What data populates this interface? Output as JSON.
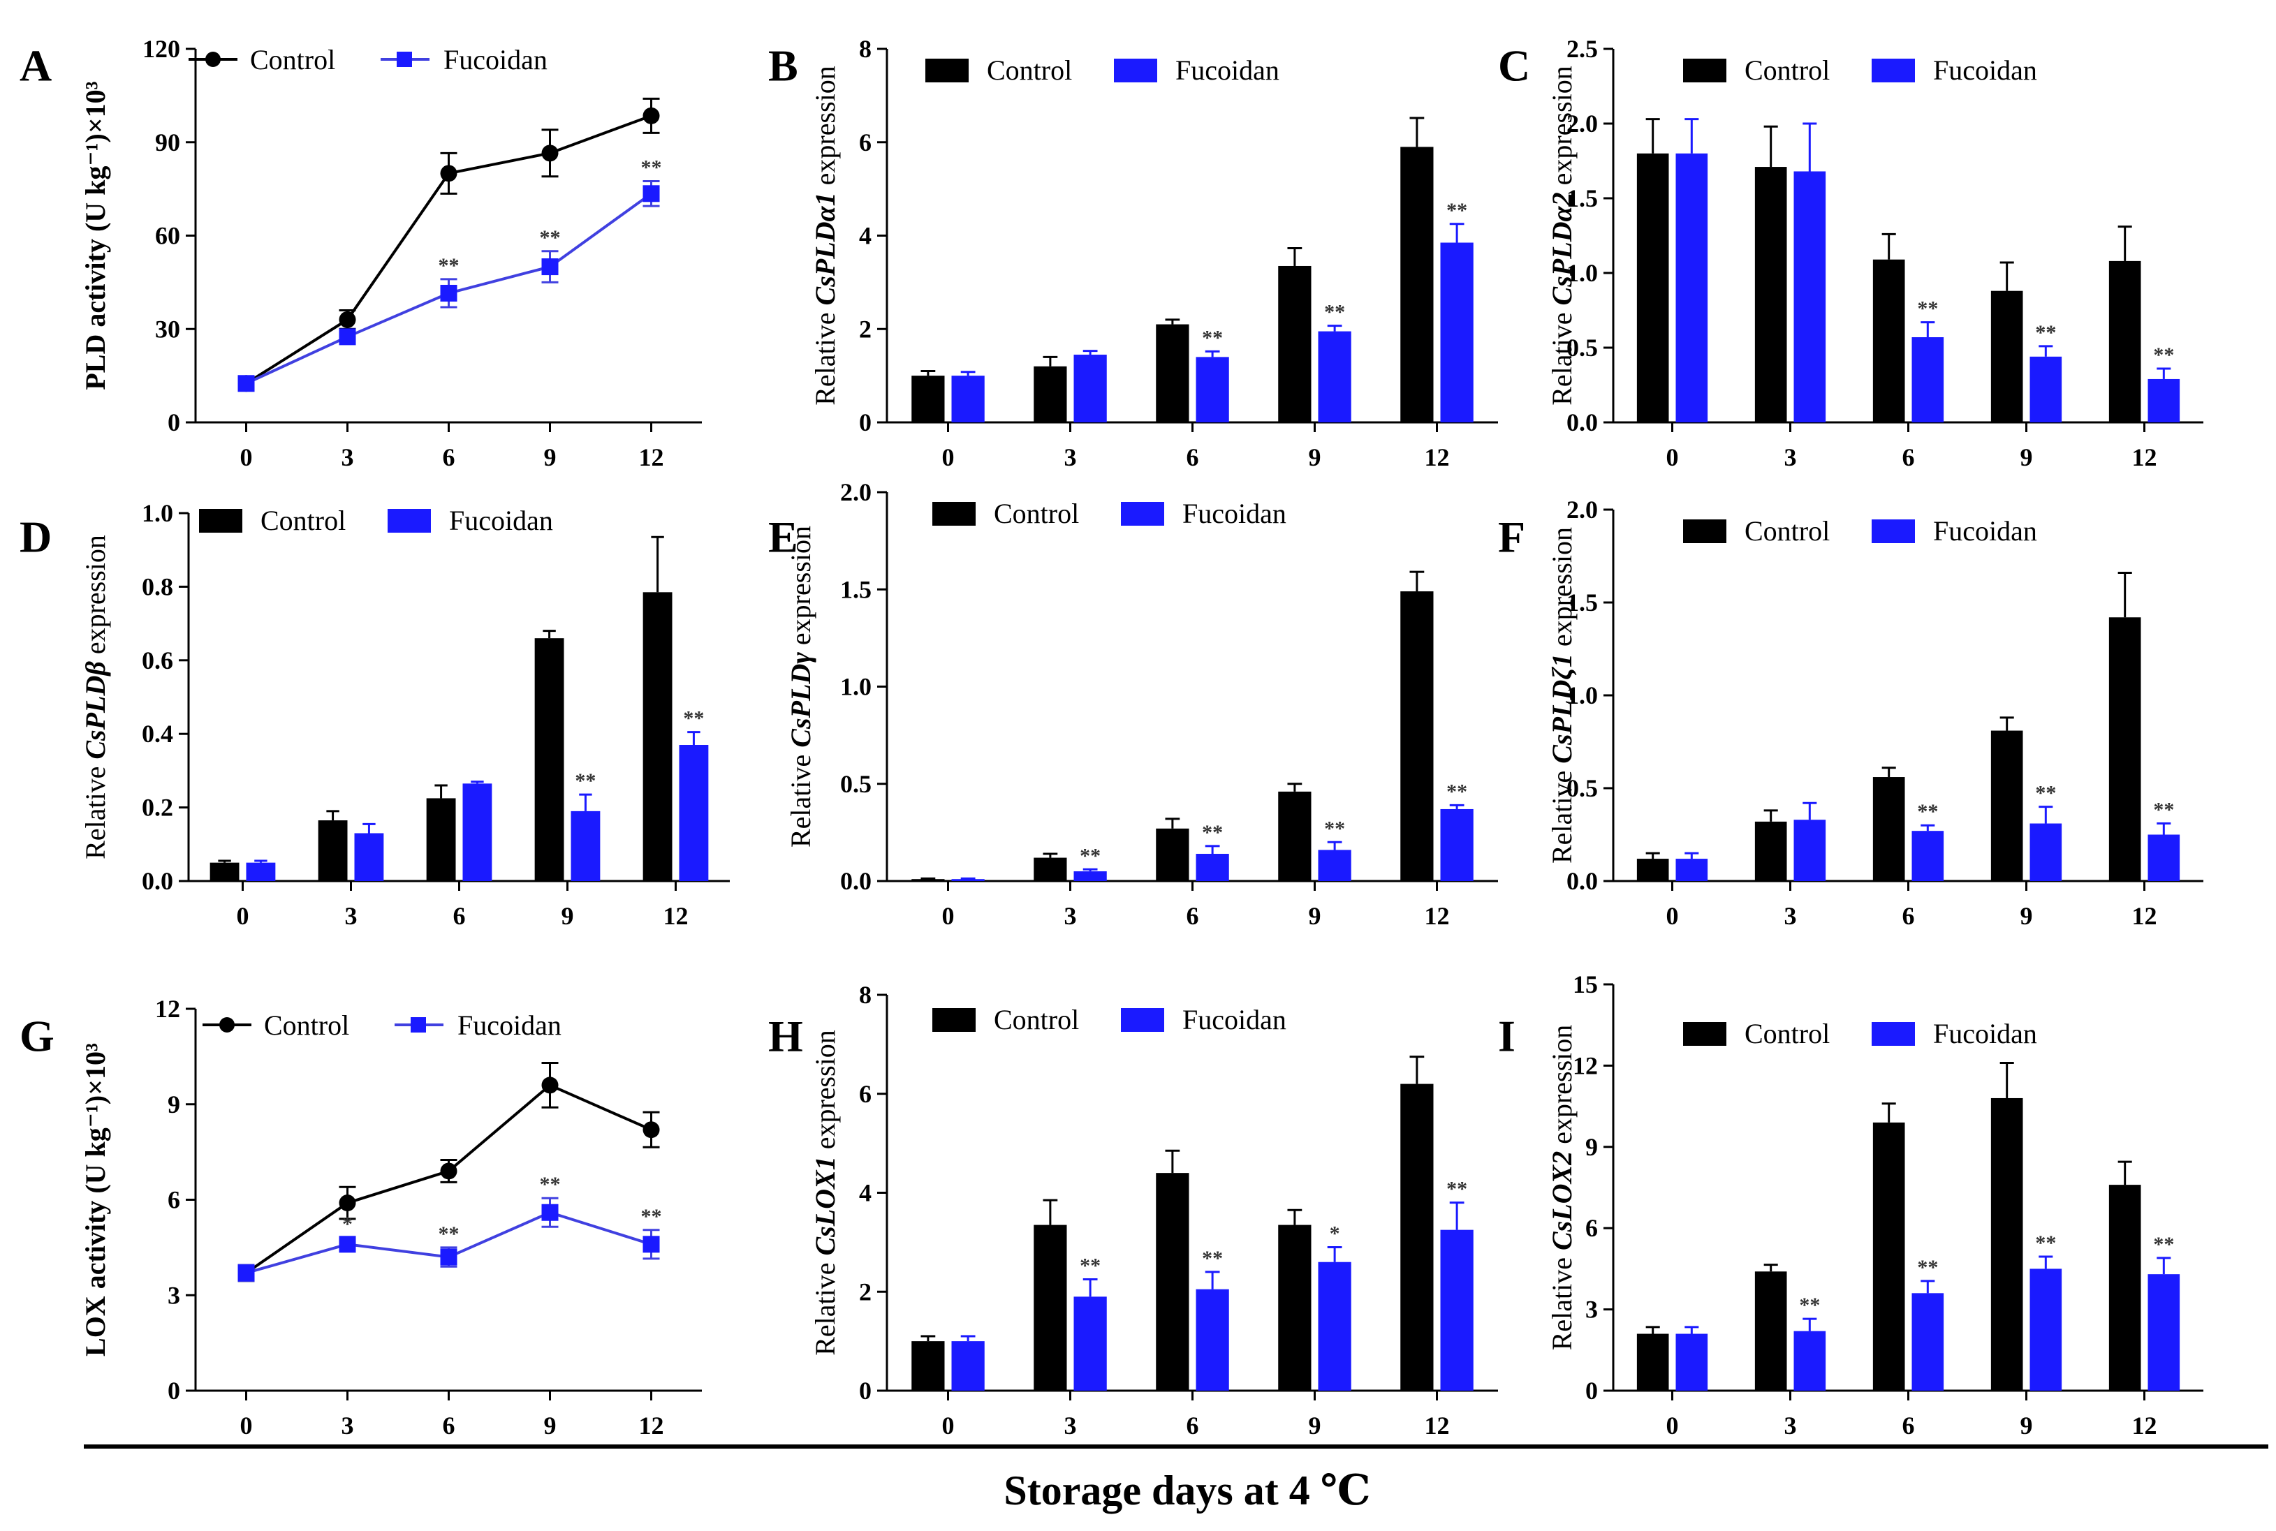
{
  "figure": {
    "xaxis_title": "Storage days at 4 ℃",
    "colors": {
      "control": "#000000",
      "fucoidan_bar": "#1a1aff",
      "fucoidan_line": "#4040e0"
    }
  },
  "chart_data": [
    {
      "id": "A",
      "panel_label": "A",
      "type": "line",
      "ylabel": "PLD activity (U kg⁻¹)×10³",
      "ylim": [
        0,
        120
      ],
      "yticks": [
        "0",
        "30",
        "60",
        "90",
        "120"
      ],
      "categories": [
        "0",
        "3",
        "6",
        "9",
        "12"
      ],
      "legend": [
        "Control",
        "Fucoidan"
      ],
      "series": [
        {
          "name": "Control",
          "values": [
            12.5,
            33,
            80,
            86.5,
            98.5
          ],
          "errors": [
            1.5,
            3,
            6.5,
            7.5,
            5.5
          ]
        },
        {
          "name": "Fucoidan",
          "values": [
            12.5,
            27.5,
            41.5,
            50,
            73.5
          ],
          "errors": [
            1.5,
            2,
            4.5,
            5,
            4
          ]
        }
      ],
      "annotations": [
        "",
        "",
        "**",
        "**",
        "**"
      ]
    },
    {
      "id": "B",
      "panel_label": "B",
      "type": "bar",
      "ylabel": "Relative CsPLDα1 expression",
      "ylim": [
        0,
        8
      ],
      "yticks": [
        "0",
        "2",
        "4",
        "6",
        "8"
      ],
      "categories": [
        "0",
        "3",
        "6",
        "9",
        "12"
      ],
      "legend": [
        "Control",
        "Fucoidan"
      ],
      "series": [
        {
          "name": "Control",
          "values": [
            1.0,
            1.2,
            2.1,
            3.35,
            5.9
          ],
          "errors": [
            0.1,
            0.2,
            0.1,
            0.38,
            0.62
          ]
        },
        {
          "name": "Fucoidan",
          "values": [
            1.0,
            1.45,
            1.4,
            1.95,
            3.85
          ],
          "errors": [
            0.08,
            0.08,
            0.12,
            0.12,
            0.4
          ]
        }
      ],
      "annotations": [
        "",
        "",
        "**",
        "**",
        "**"
      ]
    },
    {
      "id": "C",
      "panel_label": "C",
      "type": "bar",
      "ylabel": "Relative CsPLDα2 expression",
      "ylim": [
        0,
        2.5
      ],
      "yticks": [
        "0.0",
        "0.5",
        "1.0",
        "1.5",
        "2.0",
        "2.5"
      ],
      "categories": [
        "0",
        "3",
        "6",
        "9",
        "12"
      ],
      "legend": [
        "Control",
        "Fucoidan"
      ],
      "series": [
        {
          "name": "Control",
          "values": [
            1.8,
            1.71,
            1.09,
            0.88,
            1.08
          ],
          "errors": [
            0.23,
            0.27,
            0.17,
            0.19,
            0.23
          ]
        },
        {
          "name": "Fucoidan",
          "values": [
            1.8,
            1.68,
            0.57,
            0.44,
            0.29
          ],
          "errors": [
            0.23,
            0.32,
            0.1,
            0.07,
            0.07
          ]
        }
      ],
      "annotations": [
        "",
        "",
        "**",
        "**",
        "**"
      ]
    },
    {
      "id": "D",
      "panel_label": "D",
      "type": "bar",
      "ylabel": "Relative CsPLDβ expression",
      "ylim": [
        0,
        1.0
      ],
      "yticks": [
        "0.0",
        "0.2",
        "0.4",
        "0.6",
        "0.8",
        "1.0"
      ],
      "categories": [
        "0",
        "3",
        "6",
        "9",
        "12"
      ],
      "legend": [
        "Control",
        "Fucoidan"
      ],
      "series": [
        {
          "name": "Control",
          "values": [
            0.05,
            0.165,
            0.225,
            0.66,
            0.785
          ],
          "errors": [
            0.005,
            0.025,
            0.035,
            0.02,
            0.15
          ]
        },
        {
          "name": "Fucoidan",
          "values": [
            0.05,
            0.13,
            0.265,
            0.19,
            0.37
          ],
          "errors": [
            0.005,
            0.025,
            0.005,
            0.045,
            0.035
          ]
        }
      ],
      "annotations": [
        "",
        "",
        "",
        "**",
        "**"
      ]
    },
    {
      "id": "E",
      "panel_label": "E",
      "type": "bar",
      "ylabel": "Relative CsPLDγ expression",
      "ylim": [
        0,
        2.0
      ],
      "yticks": [
        "0.0",
        "0.5",
        "1.0",
        "1.5",
        "2.0"
      ],
      "categories": [
        "0",
        "3",
        "6",
        "9",
        "12"
      ],
      "legend": [
        "Control",
        "Fucoidan"
      ],
      "series": [
        {
          "name": "Control",
          "values": [
            0.01,
            0.12,
            0.27,
            0.46,
            1.49
          ],
          "errors": [
            0.003,
            0.02,
            0.05,
            0.04,
            0.1
          ]
        },
        {
          "name": "Fucoidan",
          "values": [
            0.01,
            0.05,
            0.14,
            0.16,
            0.37
          ],
          "errors": [
            0.003,
            0.01,
            0.04,
            0.04,
            0.02
          ]
        }
      ],
      "annotations": [
        "",
        "**",
        "**",
        "**",
        "**"
      ]
    },
    {
      "id": "F",
      "panel_label": "F",
      "type": "bar",
      "ylabel": "Relative CsPLDζ1 expression",
      "ylim": [
        0,
        2.0
      ],
      "yticks": [
        "0.0",
        "0.5",
        "1.0",
        "1.5",
        "2.0"
      ],
      "categories": [
        "0",
        "3",
        "6",
        "9",
        "12"
      ],
      "legend": [
        "Control",
        "Fucoidan"
      ],
      "series": [
        {
          "name": "Control",
          "values": [
            0.12,
            0.32,
            0.56,
            0.81,
            1.42
          ],
          "errors": [
            0.03,
            0.06,
            0.05,
            0.07,
            0.24
          ]
        },
        {
          "name": "Fucoidan",
          "values": [
            0.12,
            0.33,
            0.27,
            0.31,
            0.25
          ],
          "errors": [
            0.03,
            0.09,
            0.03,
            0.09,
            0.06
          ]
        }
      ],
      "annotations": [
        "",
        "",
        "**",
        "**",
        "**"
      ]
    },
    {
      "id": "G",
      "panel_label": "G",
      "type": "line",
      "ylabel": "LOX activity (U kg⁻¹)×10³",
      "ylim": [
        0,
        12
      ],
      "yticks": [
        "0",
        "3",
        "6",
        "9",
        "12"
      ],
      "categories": [
        "0",
        "3",
        "6",
        "9",
        "12"
      ],
      "legend": [
        "Control",
        "Fucoidan"
      ],
      "series": [
        {
          "name": "Control",
          "values": [
            3.7,
            5.9,
            6.9,
            9.6,
            8.2
          ],
          "errors": [
            0.25,
            0.5,
            0.35,
            0.7,
            0.55
          ]
        },
        {
          "name": "Fucoidan",
          "values": [
            3.7,
            4.6,
            4.2,
            5.6,
            4.6
          ],
          "errors": [
            0.25,
            0.2,
            0.3,
            0.45,
            0.45
          ]
        }
      ],
      "annotations": [
        "",
        "*",
        "**",
        "**",
        "**"
      ]
    },
    {
      "id": "H",
      "panel_label": "H",
      "type": "bar",
      "ylabel": "Relative CsLOX1 expression",
      "ylim": [
        0,
        8
      ],
      "yticks": [
        "0",
        "2",
        "4",
        "6",
        "8"
      ],
      "categories": [
        "0",
        "3",
        "6",
        "9",
        "12"
      ],
      "legend": [
        "Control",
        "Fucoidan"
      ],
      "series": [
        {
          "name": "Control",
          "values": [
            1.0,
            3.35,
            4.4,
            3.35,
            6.2
          ],
          "errors": [
            0.1,
            0.5,
            0.45,
            0.3,
            0.55
          ]
        },
        {
          "name": "Fucoidan",
          "values": [
            1.0,
            1.9,
            2.05,
            2.6,
            3.25
          ],
          "errors": [
            0.1,
            0.35,
            0.35,
            0.3,
            0.55
          ]
        }
      ],
      "annotations": [
        "",
        "**",
        "**",
        "*",
        "**"
      ]
    },
    {
      "id": "I",
      "panel_label": "I",
      "type": "bar",
      "ylabel": "Relative CsLOX2 expression",
      "ylim": [
        0,
        15
      ],
      "yticks": [
        "0",
        "3",
        "6",
        "9",
        "12",
        "15"
      ],
      "categories": [
        "0",
        "3",
        "6",
        "9",
        "12"
      ],
      "legend": [
        "Control",
        "Fucoidan"
      ],
      "series": [
        {
          "name": "Control",
          "values": [
            2.1,
            4.4,
            9.9,
            10.8,
            7.6
          ],
          "errors": [
            0.25,
            0.25,
            0.7,
            1.3,
            0.85
          ]
        },
        {
          "name": "Fucoidan",
          "values": [
            2.1,
            2.2,
            3.6,
            4.5,
            4.3
          ],
          "errors": [
            0.25,
            0.45,
            0.45,
            0.45,
            0.6
          ]
        }
      ],
      "annotations": [
        "",
        "**",
        "**",
        "**",
        "**"
      ]
    }
  ]
}
